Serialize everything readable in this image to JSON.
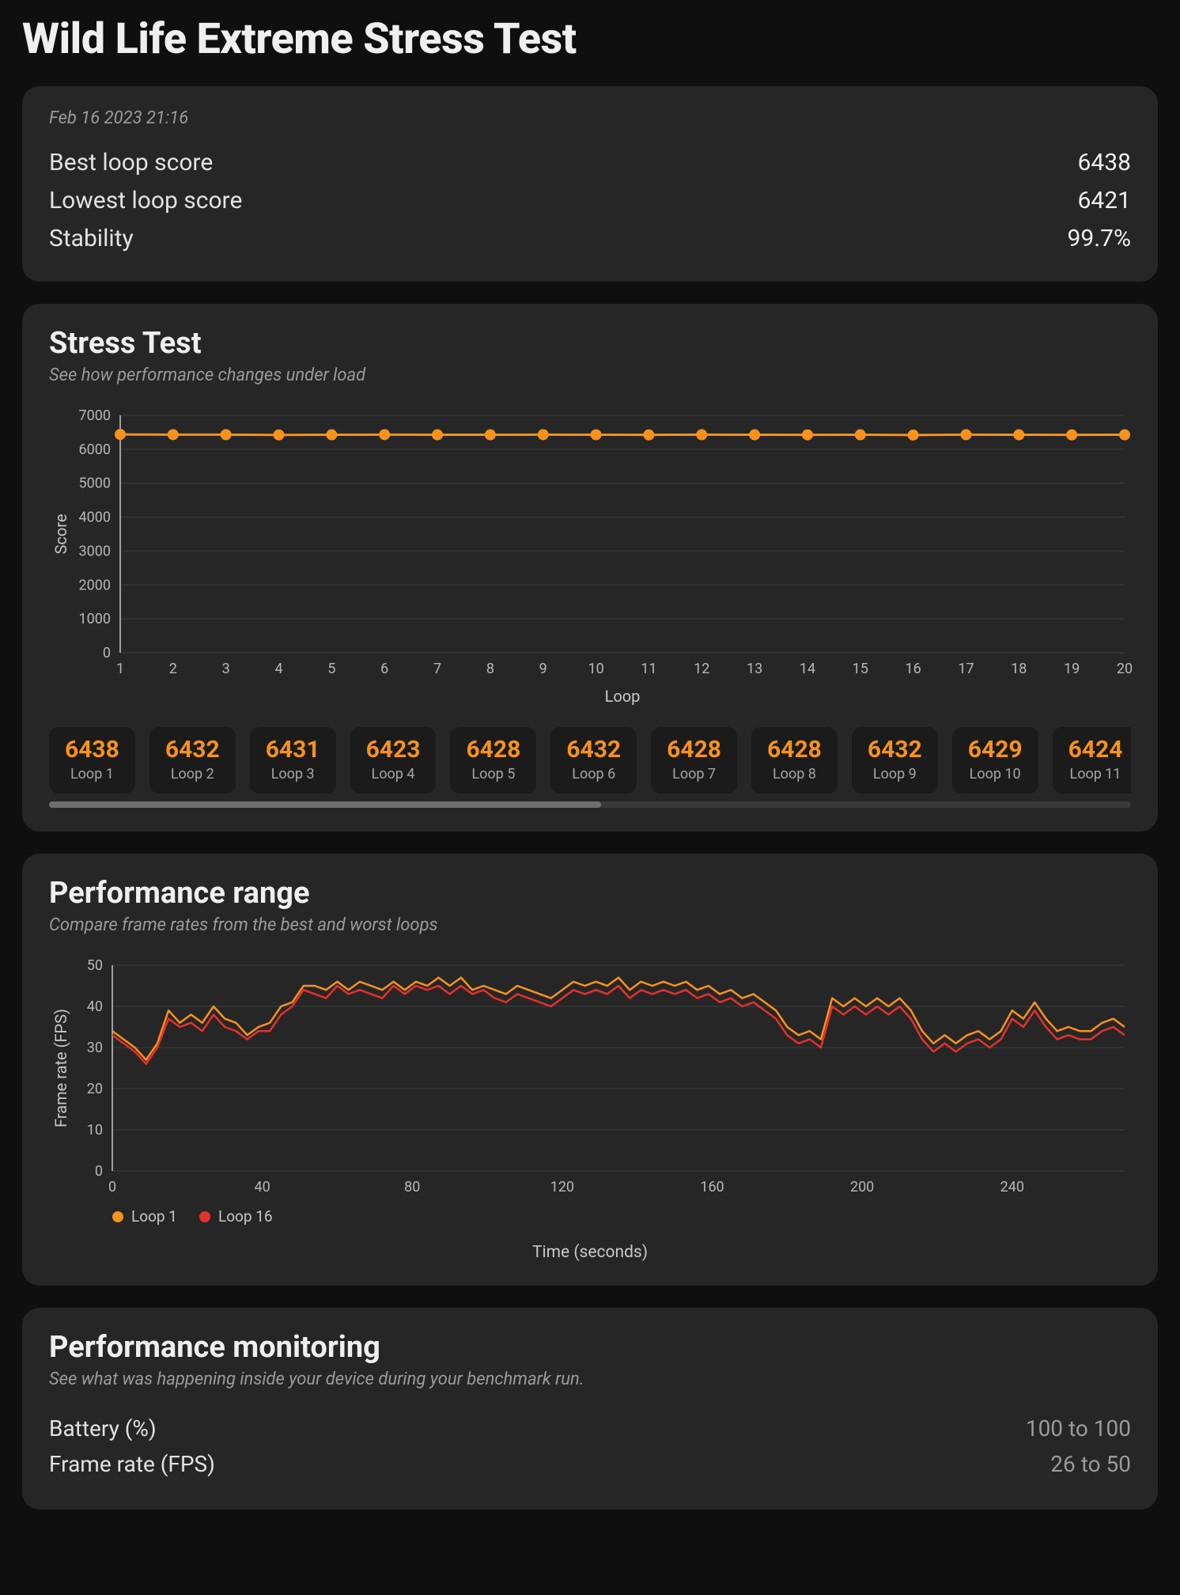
{
  "colors": {
    "background": "#0f0f0f",
    "card": "#262626",
    "chip_bg": "#1b1b1b",
    "text_primary": "#efefef",
    "text_secondary": "#9b9b9b",
    "grid": "#3e3e3e",
    "axis": "#a0a0a0",
    "accent": "#f8921c",
    "series_a": "#f8921c",
    "series_b": "#e4312e"
  },
  "page_title": "Wild Life Extreme Stress Test",
  "summary": {
    "timestamp": "Feb 16 2023 21:16",
    "rows": [
      {
        "label": "Best loop score",
        "value": "6438"
      },
      {
        "label": "Lowest loop score",
        "value": "6421"
      },
      {
        "label": "Stability",
        "value": "99.7%"
      }
    ]
  },
  "stress_chart": {
    "title": "Stress Test",
    "subtitle": "See how performance changes under load",
    "type": "line",
    "x_label": "Loop",
    "y_label": "Score",
    "xlim": [
      1,
      20
    ],
    "ylim": [
      0,
      7000
    ],
    "ytick_step": 1000,
    "xtick_step": 1,
    "marker": "circle",
    "marker_radius": 7,
    "line_width": 3,
    "line_color": "#f8921c",
    "marker_color": "#f8921c",
    "grid_color": "#3e3e3e",
    "values": [
      6438,
      6432,
      6431,
      6423,
      6428,
      6432,
      6428,
      6428,
      6432,
      6429,
      6424,
      6430,
      6427,
      6426,
      6428,
      6421,
      6430,
      6427,
      6425,
      6428
    ]
  },
  "loop_chips": {
    "visible_count": 11,
    "scrollbar_thumb_pct": 51,
    "items": [
      {
        "score": "6438",
        "label": "Loop 1"
      },
      {
        "score": "6432",
        "label": "Loop 2"
      },
      {
        "score": "6431",
        "label": "Loop 3"
      },
      {
        "score": "6423",
        "label": "Loop 4"
      },
      {
        "score": "6428",
        "label": "Loop 5"
      },
      {
        "score": "6432",
        "label": "Loop 6"
      },
      {
        "score": "6428",
        "label": "Loop 7"
      },
      {
        "score": "6428",
        "label": "Loop 8"
      },
      {
        "score": "6432",
        "label": "Loop 9"
      },
      {
        "score": "6429",
        "label": "Loop 10"
      },
      {
        "score": "6424",
        "label": "Loop 11"
      }
    ]
  },
  "perf_range": {
    "title": "Performance range",
    "subtitle": "Compare frame rates from the best and worst loops",
    "type": "line",
    "x_label": "Time (seconds)",
    "y_label": "Frame rate (FPS)",
    "xlim": [
      0,
      270
    ],
    "ylim": [
      0,
      50
    ],
    "ytick_step": 10,
    "xtick_step": 40,
    "line_width": 2.5,
    "grid_color": "#3e3e3e",
    "legend": [
      {
        "label": "Loop 1",
        "color": "#f8921c"
      },
      {
        "label": "Loop 16",
        "color": "#e4312e"
      }
    ],
    "series": {
      "loop1": {
        "color": "#f8921c",
        "xy": [
          [
            0,
            34
          ],
          [
            3,
            32
          ],
          [
            6,
            30
          ],
          [
            9,
            27
          ],
          [
            12,
            31
          ],
          [
            15,
            39
          ],
          [
            18,
            36
          ],
          [
            21,
            38
          ],
          [
            24,
            36
          ],
          [
            27,
            40
          ],
          [
            30,
            37
          ],
          [
            33,
            36
          ],
          [
            36,
            33
          ],
          [
            39,
            35
          ],
          [
            42,
            36
          ],
          [
            45,
            40
          ],
          [
            48,
            41
          ],
          [
            51,
            45
          ],
          [
            54,
            45
          ],
          [
            57,
            44
          ],
          [
            60,
            46
          ],
          [
            63,
            44
          ],
          [
            66,
            46
          ],
          [
            69,
            45
          ],
          [
            72,
            44
          ],
          [
            75,
            46
          ],
          [
            78,
            44
          ],
          [
            81,
            46
          ],
          [
            84,
            45
          ],
          [
            87,
            47
          ],
          [
            90,
            45
          ],
          [
            93,
            47
          ],
          [
            96,
            44
          ],
          [
            99,
            45
          ],
          [
            102,
            44
          ],
          [
            105,
            43
          ],
          [
            108,
            45
          ],
          [
            111,
            44
          ],
          [
            114,
            43
          ],
          [
            117,
            42
          ],
          [
            120,
            44
          ],
          [
            123,
            46
          ],
          [
            126,
            45
          ],
          [
            129,
            46
          ],
          [
            132,
            45
          ],
          [
            135,
            47
          ],
          [
            138,
            44
          ],
          [
            141,
            46
          ],
          [
            144,
            45
          ],
          [
            147,
            46
          ],
          [
            150,
            45
          ],
          [
            153,
            46
          ],
          [
            156,
            44
          ],
          [
            159,
            45
          ],
          [
            162,
            43
          ],
          [
            165,
            44
          ],
          [
            168,
            42
          ],
          [
            171,
            43
          ],
          [
            174,
            41
          ],
          [
            177,
            39
          ],
          [
            180,
            35
          ],
          [
            183,
            33
          ],
          [
            186,
            34
          ],
          [
            189,
            32
          ],
          [
            192,
            42
          ],
          [
            195,
            40
          ],
          [
            198,
            42
          ],
          [
            201,
            40
          ],
          [
            204,
            42
          ],
          [
            207,
            40
          ],
          [
            210,
            42
          ],
          [
            213,
            39
          ],
          [
            216,
            34
          ],
          [
            219,
            31
          ],
          [
            222,
            33
          ],
          [
            225,
            31
          ],
          [
            228,
            33
          ],
          [
            231,
            34
          ],
          [
            234,
            32
          ],
          [
            237,
            34
          ],
          [
            240,
            39
          ],
          [
            243,
            37
          ],
          [
            246,
            41
          ],
          [
            249,
            37
          ],
          [
            252,
            34
          ],
          [
            255,
            35
          ],
          [
            258,
            34
          ],
          [
            261,
            34
          ],
          [
            264,
            36
          ],
          [
            267,
            37
          ],
          [
            270,
            35
          ]
        ]
      },
      "loop16": {
        "color": "#e4312e",
        "xy": [
          [
            0,
            33
          ],
          [
            3,
            31
          ],
          [
            6,
            29
          ],
          [
            9,
            26
          ],
          [
            12,
            30
          ],
          [
            15,
            37
          ],
          [
            18,
            35
          ],
          [
            21,
            36
          ],
          [
            24,
            34
          ],
          [
            27,
            38
          ],
          [
            30,
            35
          ],
          [
            33,
            34
          ],
          [
            36,
            32
          ],
          [
            39,
            34
          ],
          [
            42,
            34
          ],
          [
            45,
            38
          ],
          [
            48,
            40
          ],
          [
            51,
            44
          ],
          [
            54,
            43
          ],
          [
            57,
            42
          ],
          [
            60,
            45
          ],
          [
            63,
            43
          ],
          [
            66,
            44
          ],
          [
            69,
            43
          ],
          [
            72,
            42
          ],
          [
            75,
            45
          ],
          [
            78,
            43
          ],
          [
            81,
            45
          ],
          [
            84,
            44
          ],
          [
            87,
            45
          ],
          [
            90,
            43
          ],
          [
            93,
            45
          ],
          [
            96,
            43
          ],
          [
            99,
            44
          ],
          [
            102,
            42
          ],
          [
            105,
            41
          ],
          [
            108,
            43
          ],
          [
            111,
            42
          ],
          [
            114,
            41
          ],
          [
            117,
            40
          ],
          [
            120,
            42
          ],
          [
            123,
            44
          ],
          [
            126,
            43
          ],
          [
            129,
            44
          ],
          [
            132,
            43
          ],
          [
            135,
            45
          ],
          [
            138,
            42
          ],
          [
            141,
            44
          ],
          [
            144,
            43
          ],
          [
            147,
            44
          ],
          [
            150,
            43
          ],
          [
            153,
            44
          ],
          [
            156,
            42
          ],
          [
            159,
            43
          ],
          [
            162,
            41
          ],
          [
            165,
            42
          ],
          [
            168,
            40
          ],
          [
            171,
            41
          ],
          [
            174,
            39
          ],
          [
            177,
            37
          ],
          [
            180,
            33
          ],
          [
            183,
            31
          ],
          [
            186,
            32
          ],
          [
            189,
            30
          ],
          [
            192,
            40
          ],
          [
            195,
            38
          ],
          [
            198,
            40
          ],
          [
            201,
            38
          ],
          [
            204,
            40
          ],
          [
            207,
            38
          ],
          [
            210,
            40
          ],
          [
            213,
            37
          ],
          [
            216,
            32
          ],
          [
            219,
            29
          ],
          [
            222,
            31
          ],
          [
            225,
            29
          ],
          [
            228,
            31
          ],
          [
            231,
            32
          ],
          [
            234,
            30
          ],
          [
            237,
            32
          ],
          [
            240,
            37
          ],
          [
            243,
            35
          ],
          [
            246,
            39
          ],
          [
            249,
            35
          ],
          [
            252,
            32
          ],
          [
            255,
            33
          ],
          [
            258,
            32
          ],
          [
            261,
            32
          ],
          [
            264,
            34
          ],
          [
            267,
            35
          ],
          [
            270,
            33
          ]
        ]
      }
    }
  },
  "perf_monitoring": {
    "title": "Performance monitoring",
    "subtitle": "See what was happening inside your device during your benchmark run.",
    "rows": [
      {
        "label": "Battery (%)",
        "value": "100 to 100"
      },
      {
        "label": "Frame rate (FPS)",
        "value": "26 to 50"
      }
    ]
  }
}
